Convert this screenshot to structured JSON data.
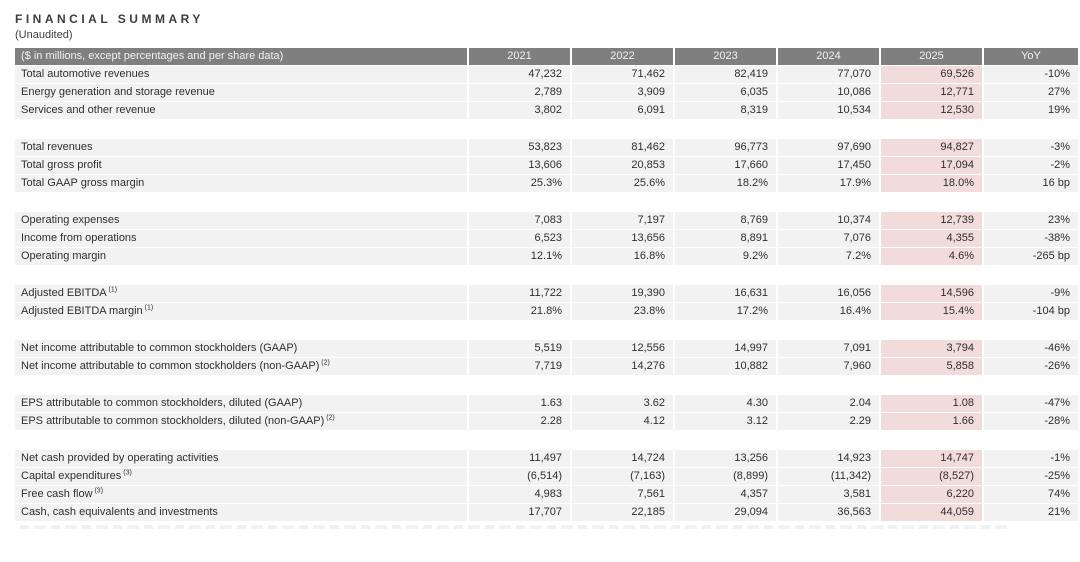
{
  "page": {
    "title": "FINANCIAL SUMMARY",
    "subtitle": "(Unaudited)"
  },
  "table": {
    "header": {
      "label": "($ in millions, except percentages and per share data)",
      "columns": [
        "2021",
        "2022",
        "2023",
        "2024",
        "2025",
        "YoY"
      ]
    },
    "highlight_column": "2025",
    "colors": {
      "header_bg": "#7f7f7f",
      "header_text": "#f2f2f2",
      "row_bg": "#f2f2f2",
      "highlight_bg": "#f2dcdb",
      "body_text": "#2e2e2e"
    },
    "rows": [
      {
        "label": "Total automotive revenues",
        "sup": "",
        "values": [
          "47,232",
          "71,462",
          "82,419",
          "77,070",
          "69,526",
          "-10%"
        ]
      },
      {
        "label": "Energy generation and storage revenue",
        "sup": "",
        "values": [
          "2,789",
          "3,909",
          "6,035",
          "10,086",
          "12,771",
          "27%"
        ]
      },
      {
        "label": "Services and other revenue",
        "sup": "",
        "values": [
          "3,802",
          "6,091",
          "8,319",
          "10,534",
          "12,530",
          "19%"
        ]
      },
      {
        "gap": true
      },
      {
        "label": "Total revenues",
        "sup": "",
        "values": [
          "53,823",
          "81,462",
          "96,773",
          "97,690",
          "94,827",
          "-3%"
        ]
      },
      {
        "label": "Total gross profit",
        "sup": "",
        "values": [
          "13,606",
          "20,853",
          "17,660",
          "17,450",
          "17,094",
          "-2%"
        ]
      },
      {
        "label": "Total GAAP gross margin",
        "sup": "",
        "values": [
          "25.3%",
          "25.6%",
          "18.2%",
          "17.9%",
          "18.0%",
          "16 bp"
        ]
      },
      {
        "gap": true
      },
      {
        "label": "Operating expenses",
        "sup": "",
        "values": [
          "7,083",
          "7,197",
          "8,769",
          "10,374",
          "12,739",
          "23%"
        ]
      },
      {
        "label": "Income from operations",
        "sup": "",
        "values": [
          "6,523",
          "13,656",
          "8,891",
          "7,076",
          "4,355",
          "-38%"
        ]
      },
      {
        "label": "Operating margin",
        "sup": "",
        "values": [
          "12.1%",
          "16.8%",
          "9.2%",
          "7.2%",
          "4.6%",
          "-265 bp"
        ]
      },
      {
        "gap": true
      },
      {
        "label": "Adjusted EBITDA",
        "sup": "(1)",
        "values": [
          "11,722",
          "19,390",
          "16,631",
          "16,056",
          "14,596",
          "-9%"
        ]
      },
      {
        "label": "Adjusted EBITDA margin",
        "sup": "(1)",
        "values": [
          "21.8%",
          "23.8%",
          "17.2%",
          "16.4%",
          "15.4%",
          "-104 bp"
        ]
      },
      {
        "gap": true
      },
      {
        "label": "Net income attributable to common stockholders (GAAP)",
        "sup": "",
        "values": [
          "5,519",
          "12,556",
          "14,997",
          "7,091",
          "3,794",
          "-46%"
        ]
      },
      {
        "label": "Net income attributable to common stockholders (non-GAAP)",
        "sup": "(2)",
        "values": [
          "7,719",
          "14,276",
          "10,882",
          "7,960",
          "5,858",
          "-26%"
        ]
      },
      {
        "gap": true
      },
      {
        "label": "EPS attributable to common stockholders, diluted (GAAP)",
        "sup": "",
        "values": [
          "1.63",
          "3.62",
          "4.30",
          "2.04",
          "1.08",
          "-47%"
        ]
      },
      {
        "label": "EPS attributable to common stockholders, diluted (non-GAAP)",
        "sup": "(2)",
        "values": [
          "2.28",
          "4.12",
          "3.12",
          "2.29",
          "1.66",
          "-28%"
        ]
      },
      {
        "gap": true
      },
      {
        "label": "Net cash provided by operating activities",
        "sup": "",
        "values": [
          "11,497",
          "14,724",
          "13,256",
          "14,923",
          "14,747",
          "-1%"
        ]
      },
      {
        "label": "Capital expenditures",
        "sup": "(3)",
        "values": [
          "(6,514)",
          "(7,163)",
          "(8,899)",
          "(11,342)",
          "(8,527)",
          "-25%"
        ]
      },
      {
        "label": "Free cash flow",
        "sup": "(3)",
        "values": [
          "4,983",
          "7,561",
          "4,357",
          "3,581",
          "6,220",
          "74%"
        ]
      },
      {
        "label": "Cash, cash equivalents and investments",
        "sup": "",
        "values": [
          "17,707",
          "22,185",
          "29,094",
          "36,563",
          "44,059",
          "21%"
        ]
      }
    ]
  }
}
